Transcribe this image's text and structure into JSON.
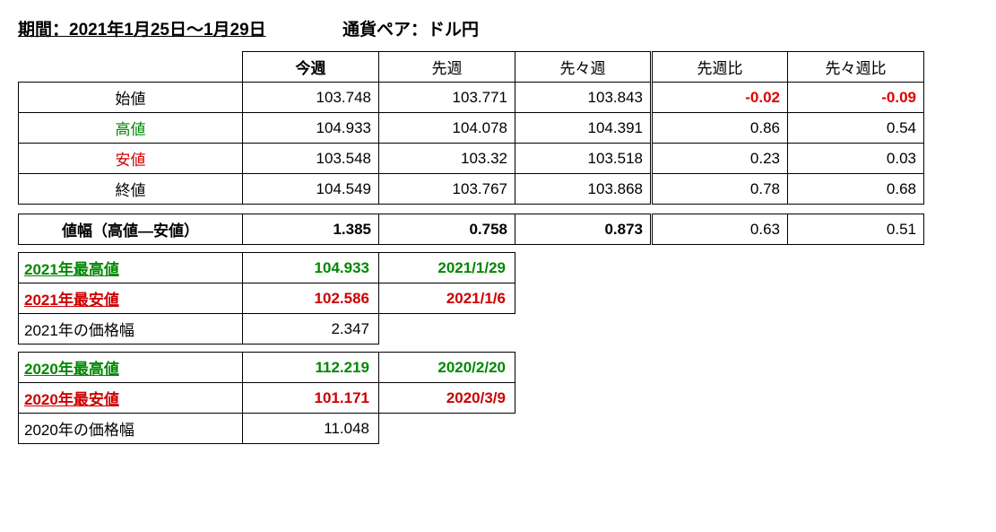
{
  "header": {
    "period": "期間：2021年1月25日～1月29日",
    "pair": "通貨ペア：ドル円"
  },
  "main": {
    "headers": {
      "thisWeek": "今週",
      "lastWeek": "先週",
      "twoWeeksAgo": "先々週",
      "vsLast": "先週比",
      "vsTwo": "先々週比"
    },
    "rows": [
      {
        "label": "始値",
        "labelClass": "",
        "tw": "103.748",
        "lw": "103.771",
        "tw2": "103.843",
        "vl": "-0.02",
        "vlNeg": true,
        "v2": "-0.09",
        "v2Neg": true
      },
      {
        "label": "高値",
        "labelClass": "green",
        "tw": "104.933",
        "lw": "104.078",
        "tw2": "104.391",
        "vl": "0.86",
        "vlNeg": false,
        "v2": "0.54",
        "v2Neg": false
      },
      {
        "label": "安値",
        "labelClass": "red",
        "tw": "103.548",
        "lw": "103.32",
        "tw2": "103.518",
        "vl": "0.23",
        "vlNeg": false,
        "v2": "0.03",
        "v2Neg": false
      },
      {
        "label": "終値",
        "labelClass": "",
        "tw": "104.549",
        "lw": "103.767",
        "tw2": "103.868",
        "vl": "0.78",
        "vlNeg": false,
        "v2": "0.68",
        "v2Neg": false
      }
    ]
  },
  "range": {
    "label": "値幅（高値―安値）",
    "tw": "1.385",
    "lw": "0.758",
    "tw2": "0.873",
    "vl": "0.63",
    "v2": "0.51"
  },
  "y2021": {
    "highLabel": "2021年最高値",
    "highVal": "104.933",
    "highDate": "2021/1/29",
    "lowLabel": "2021年最安値",
    "lowVal": "102.586",
    "lowDate": "2021/1/6",
    "rangeLabel": "2021年の価格幅",
    "rangeVal": "2.347"
  },
  "y2020": {
    "highLabel": "2020年最高値",
    "highVal": "112.219",
    "highDate": "2020/2/20",
    "lowLabel": "2020年最安値",
    "lowVal": "101.171",
    "lowDate": "2020/3/9",
    "rangeLabel": "2020年の価格幅",
    "rangeVal": "11.048"
  }
}
